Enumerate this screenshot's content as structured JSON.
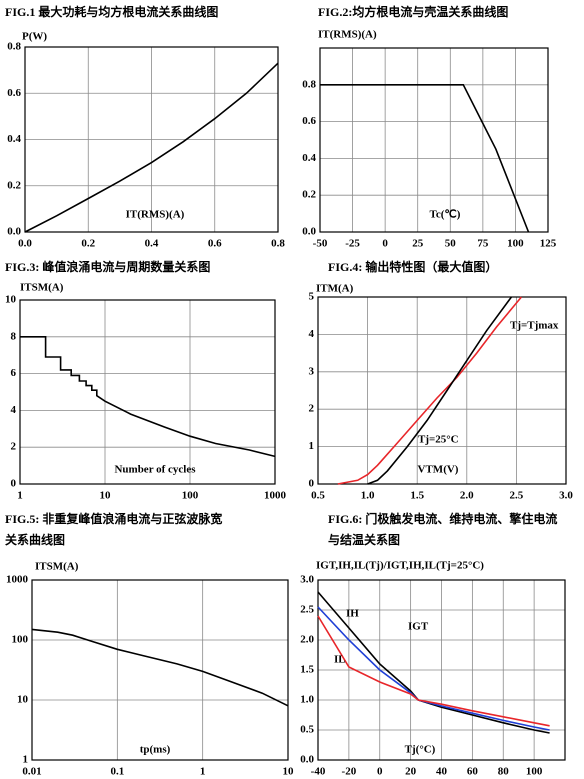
{
  "chart_data": [
    {
      "type": "line",
      "title": "FIG.1  最大功耗与均方根电流关系曲线图",
      "ylabel": "P(W)",
      "xlabel": "IT(RMS)(A)",
      "x": [
        0,
        0.1,
        0.2,
        0.3,
        0.4,
        0.5,
        0.6,
        0.7,
        0.8
      ],
      "series": [
        {
          "color": "#000000",
          "values": [
            0,
            0.07,
            0.145,
            0.22,
            0.3,
            0.39,
            0.49,
            0.6,
            0.73
          ]
        }
      ],
      "xlim": [
        0,
        0.8
      ],
      "xticks": [
        {
          "value": 0,
          "label": "0.0"
        },
        0.2,
        0.4,
        0.6,
        0.8
      ],
      "ylim": [
        0,
        0.8
      ],
      "yticks": [
        {
          "value": 0,
          "label": "0.0"
        },
        0.2,
        0.4,
        0.6,
        0.8
      ],
      "grid": true
    },
    {
      "type": "line",
      "title": "FIG.2:均方根电流与壳温关系曲线图",
      "ylabel": "IT(RMS)(A)",
      "xlabel": "Tc(℃)",
      "x": [
        -50,
        60,
        85,
        110
      ],
      "series": [
        {
          "color": "#000000",
          "values": [
            0.8,
            0.8,
            0.45,
            0
          ]
        }
      ],
      "xlim": [
        -50,
        125
      ],
      "xticks": [
        -50,
        -25,
        0,
        25,
        50,
        75,
        100,
        125
      ],
      "ylim": [
        0,
        1.0
      ],
      "yticks": [
        {
          "value": 0,
          "label": "0.0"
        },
        0.2,
        0.4,
        0.6,
        0.8
      ],
      "grid": true
    },
    {
      "type": "line",
      "title": "FIG.3:  峰值浪涌电流与周期数量关系图",
      "ylabel": "ITSM(A)",
      "xlabel": "Number of cycles",
      "x": [
        1,
        2,
        2,
        3,
        3,
        4,
        4,
        5,
        5,
        6,
        6,
        7,
        7,
        8,
        8,
        10,
        20,
        50,
        100,
        200,
        500,
        1000
      ],
      "series": [
        {
          "color": "#000000",
          "values": [
            8,
            8,
            6.9,
            6.9,
            6.2,
            6.2,
            5.9,
            5.9,
            5.6,
            5.6,
            5.35,
            5.35,
            5.1,
            5.1,
            4.8,
            4.5,
            3.8,
            3.1,
            2.6,
            2.2,
            1.85,
            1.5
          ]
        }
      ],
      "xlog": true,
      "xlim": [
        1,
        1000
      ],
      "xticks": [
        1,
        10,
        100,
        1000
      ],
      "ylim": [
        0,
        10
      ],
      "yticks": [
        0,
        2,
        4,
        6,
        8,
        10
      ],
      "grid": true
    },
    {
      "type": "line",
      "title": "FIG.4:  输出特性图（最大值图）",
      "ylabel": "ITM(A)",
      "xlabel": "VTM(V)",
      "series": [
        {
          "name": "Tj=Tjmax",
          "color": "#e8262a",
          "x": [
            0.7,
            0.9,
            1.0,
            1.1,
            1.3,
            1.5,
            1.7,
            1.9,
            2.1,
            2.3,
            2.55
          ],
          "values": [
            0,
            0.1,
            0.25,
            0.5,
            1.1,
            1.7,
            2.3,
            2.85,
            3.5,
            4.2,
            5.0
          ]
        },
        {
          "name": "Tj=25°C",
          "color": "#000000",
          "x": [
            1.0,
            1.1,
            1.2,
            1.4,
            1.6,
            1.8,
            2.0,
            2.2,
            2.45
          ],
          "values": [
            0,
            0.1,
            0.35,
            1.0,
            1.7,
            2.5,
            3.3,
            4.1,
            5.0
          ]
        }
      ],
      "xlim": [
        0.5,
        3.0
      ],
      "xticks": [
        0.5,
        {
          "value": 1,
          "label": "1.0"
        },
        1.5,
        {
          "value": 2,
          "label": "2.0"
        },
        2.5,
        {
          "value": 3,
          "label": "3.0"
        }
      ],
      "ylim": [
        0,
        5
      ],
      "yticks": [
        0,
        1,
        2,
        3,
        4,
        5
      ],
      "grid": true
    },
    {
      "type": "line",
      "title": [
        "FIG.5:  非重复峰值浪涌电流与正弦波脉宽",
        "关系曲线图"
      ],
      "ylabel": "ITSM(A)",
      "xlabel": "tp(ms)",
      "x": [
        0.01,
        0.02,
        0.03,
        0.05,
        0.1,
        0.2,
        0.5,
        1,
        2,
        5,
        10
      ],
      "series": [
        {
          "color": "#000000",
          "values": [
            150,
            135,
            120,
            95,
            70,
            55,
            40,
            30,
            21,
            13,
            8
          ]
        }
      ],
      "xlog": true,
      "ylog": true,
      "xlim": [
        0.01,
        10
      ],
      "xticks": [
        0.01,
        0.1,
        1,
        10
      ],
      "ylim": [
        1,
        1000
      ],
      "yticks": [
        1,
        10,
        100,
        1000
      ],
      "grid": true
    },
    {
      "type": "line",
      "title": [
        "FIG.6:  门极触发电流、维持电流、擎住电流",
        "与结温关系图"
      ],
      "ylabel": "IGT,IH,IL(Tj)/IGT,IH,IL(Tj=25°C)",
      "xlabel": "Tj(°C)",
      "x": [
        -40,
        -20,
        0,
        20,
        25,
        40,
        60,
        80,
        100,
        110
      ],
      "series": [
        {
          "name": "IH",
          "color": "#000000",
          "values": [
            2.8,
            2.2,
            1.6,
            1.15,
            1.0,
            0.88,
            0.75,
            0.62,
            0.5,
            0.45
          ]
        },
        {
          "name": "IGT",
          "color": "#1f3fd6",
          "values": [
            2.55,
            2.0,
            1.5,
            1.12,
            1.0,
            0.9,
            0.78,
            0.66,
            0.55,
            0.5
          ]
        },
        {
          "name": "IL",
          "color": "#e8262a",
          "values": [
            2.4,
            1.55,
            1.3,
            1.1,
            1.0,
            0.93,
            0.82,
            0.72,
            0.62,
            0.57
          ]
        }
      ],
      "xlim": [
        -40,
        120
      ],
      "xticks": [
        -40,
        -20,
        0,
        20,
        40,
        60,
        80,
        100
      ],
      "ylim": [
        0,
        3
      ],
      "yticks": [
        {
          "value": 0,
          "label": "0.0"
        },
        0.5,
        {
          "value": 1,
          "label": "1.0"
        },
        1.5,
        {
          "value": 2,
          "label": "2.0"
        },
        2.5,
        {
          "value": 3,
          "label": "3.0"
        }
      ],
      "grid": true
    }
  ]
}
